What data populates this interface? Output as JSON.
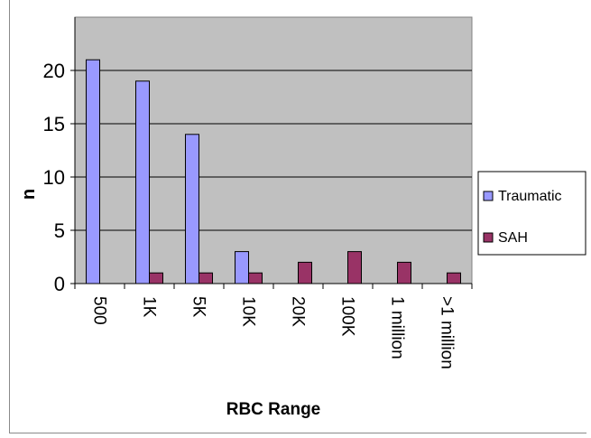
{
  "chart_data": {
    "type": "bar",
    "title": "",
    "xlabel": "RBC Range",
    "ylabel": "n",
    "categories": [
      "500",
      "1K",
      "5K",
      "10K",
      "20K",
      "100K",
      "1 million",
      ">1 million"
    ],
    "series": [
      {
        "name": "Traumatic",
        "color": "#9999ff",
        "values": [
          21,
          19,
          14,
          3,
          0,
          0,
          0,
          0
        ]
      },
      {
        "name": "SAH",
        "color": "#993366",
        "values": [
          0,
          1,
          1,
          1,
          2,
          3,
          2,
          1
        ]
      }
    ],
    "ylim": [
      0,
      25
    ],
    "yticks": [
      0,
      5,
      10,
      15,
      20
    ],
    "plot_background": "#c0c0c0",
    "grid": true,
    "legend": "right"
  }
}
